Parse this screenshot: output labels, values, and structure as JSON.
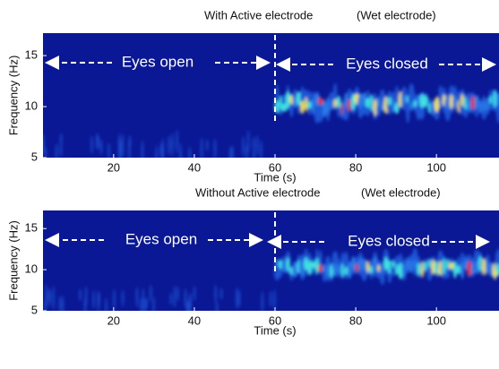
{
  "chart_data": [
    {
      "type": "spectrogram",
      "title": "With Active electrode",
      "subtitle": "(Wet electrode)",
      "xlabel": "Time (s)",
      "ylabel": "Frequency (Hz)",
      "annotations": [
        "Eyes open",
        "Eyes closed"
      ],
      "event_x": 60,
      "xlim": [
        2.5,
        115.5
      ],
      "ylim": [
        5,
        17.2
      ],
      "xticks": [
        20,
        40,
        60,
        80,
        100
      ],
      "yticks": [
        5,
        10,
        15
      ]
    },
    {
      "type": "spectrogram",
      "title": "Without Active electrode",
      "subtitle": "(Wet electrode)",
      "xlabel": "Time (s)",
      "ylabel": "Frequency (Hz)",
      "annotations": [
        "Eyes open",
        "Eyes closed"
      ],
      "event_x": 60,
      "xlim": [
        2.5,
        115.5
      ],
      "ylim": [
        5,
        17.2
      ],
      "xticks": [
        20,
        40,
        60,
        80,
        100
      ],
      "yticks": [
        5,
        10,
        15
      ]
    }
  ]
}
